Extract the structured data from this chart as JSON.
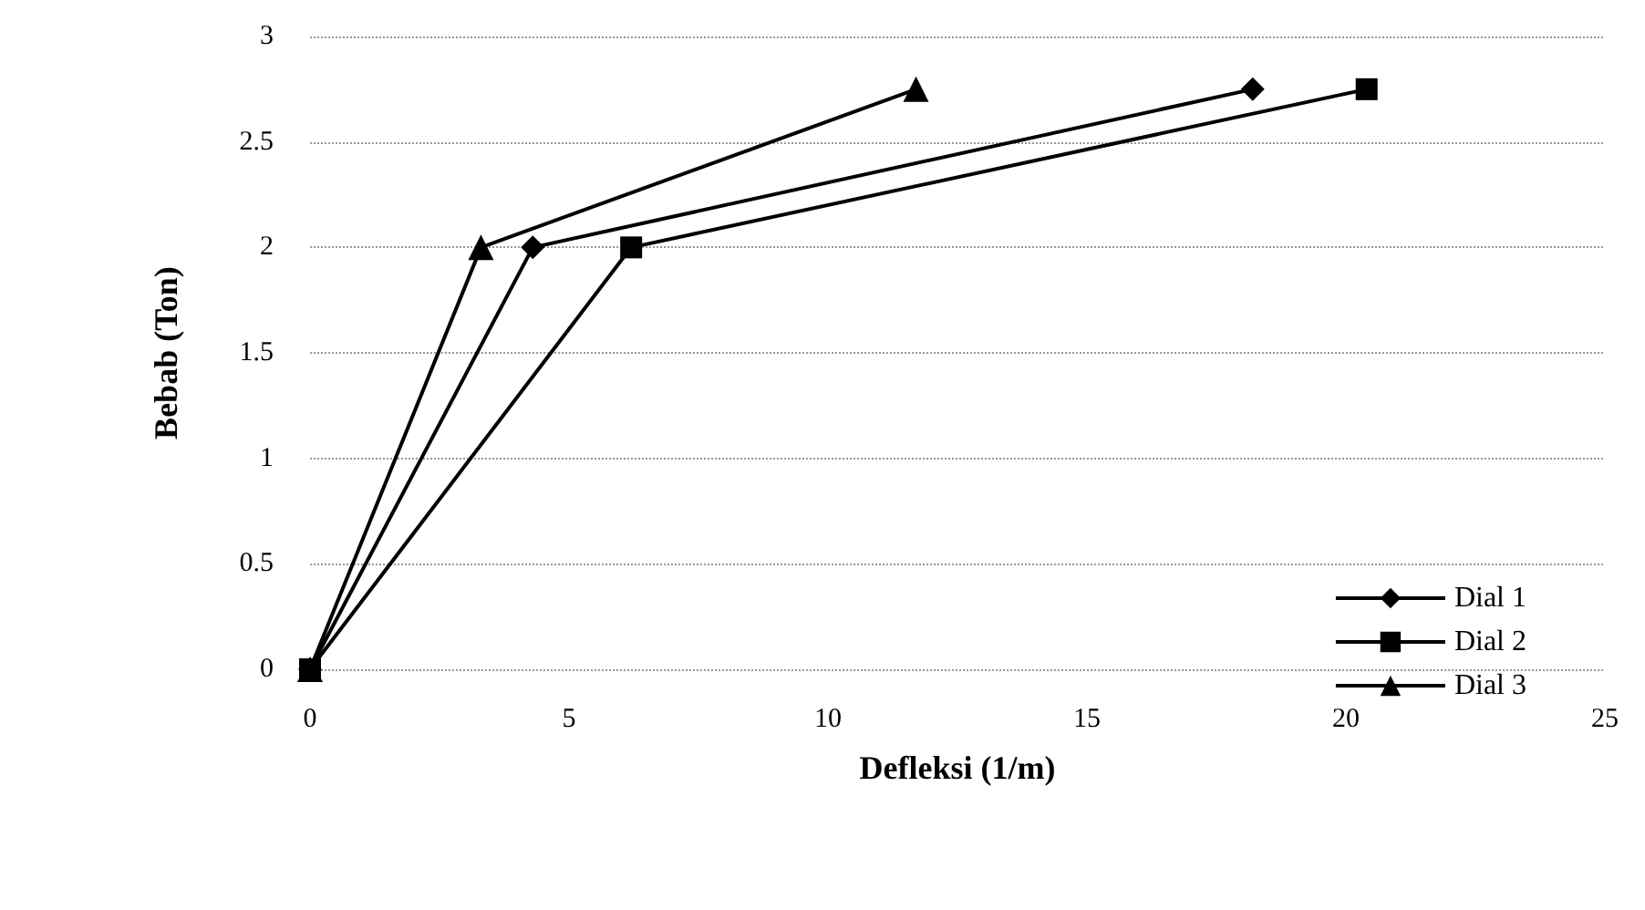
{
  "chart_data": {
    "type": "line",
    "xlabel": "Defleksi (1/m)",
    "ylabel": "Bebab (Ton)",
    "xlim": [
      0,
      25
    ],
    "xticks": [
      0,
      5,
      10,
      15,
      20,
      25
    ],
    "ylim": [
      0,
      3
    ],
    "yticks": [
      0,
      0.5,
      1,
      1.5,
      2,
      2.5,
      3
    ],
    "grid": "y",
    "legend": "right",
    "line_style": "solid",
    "series": [
      {
        "name": "Dial 1",
        "color": "#000000",
        "marker": "diamond",
        "x": [
          0,
          4.3,
          18.2
        ],
        "values": [
          0,
          2,
          2.75
        ]
      },
      {
        "name": "Dial 2",
        "color": "#000000",
        "marker": "square",
        "x": [
          0,
          6.2,
          20.4
        ],
        "values": [
          0,
          2,
          2.75
        ]
      },
      {
        "name": "Dial 3",
        "color": "#000000",
        "marker": "triangle",
        "x": [
          0,
          3.3,
          11.7
        ],
        "values": [
          0,
          2,
          2.75
        ]
      }
    ]
  }
}
